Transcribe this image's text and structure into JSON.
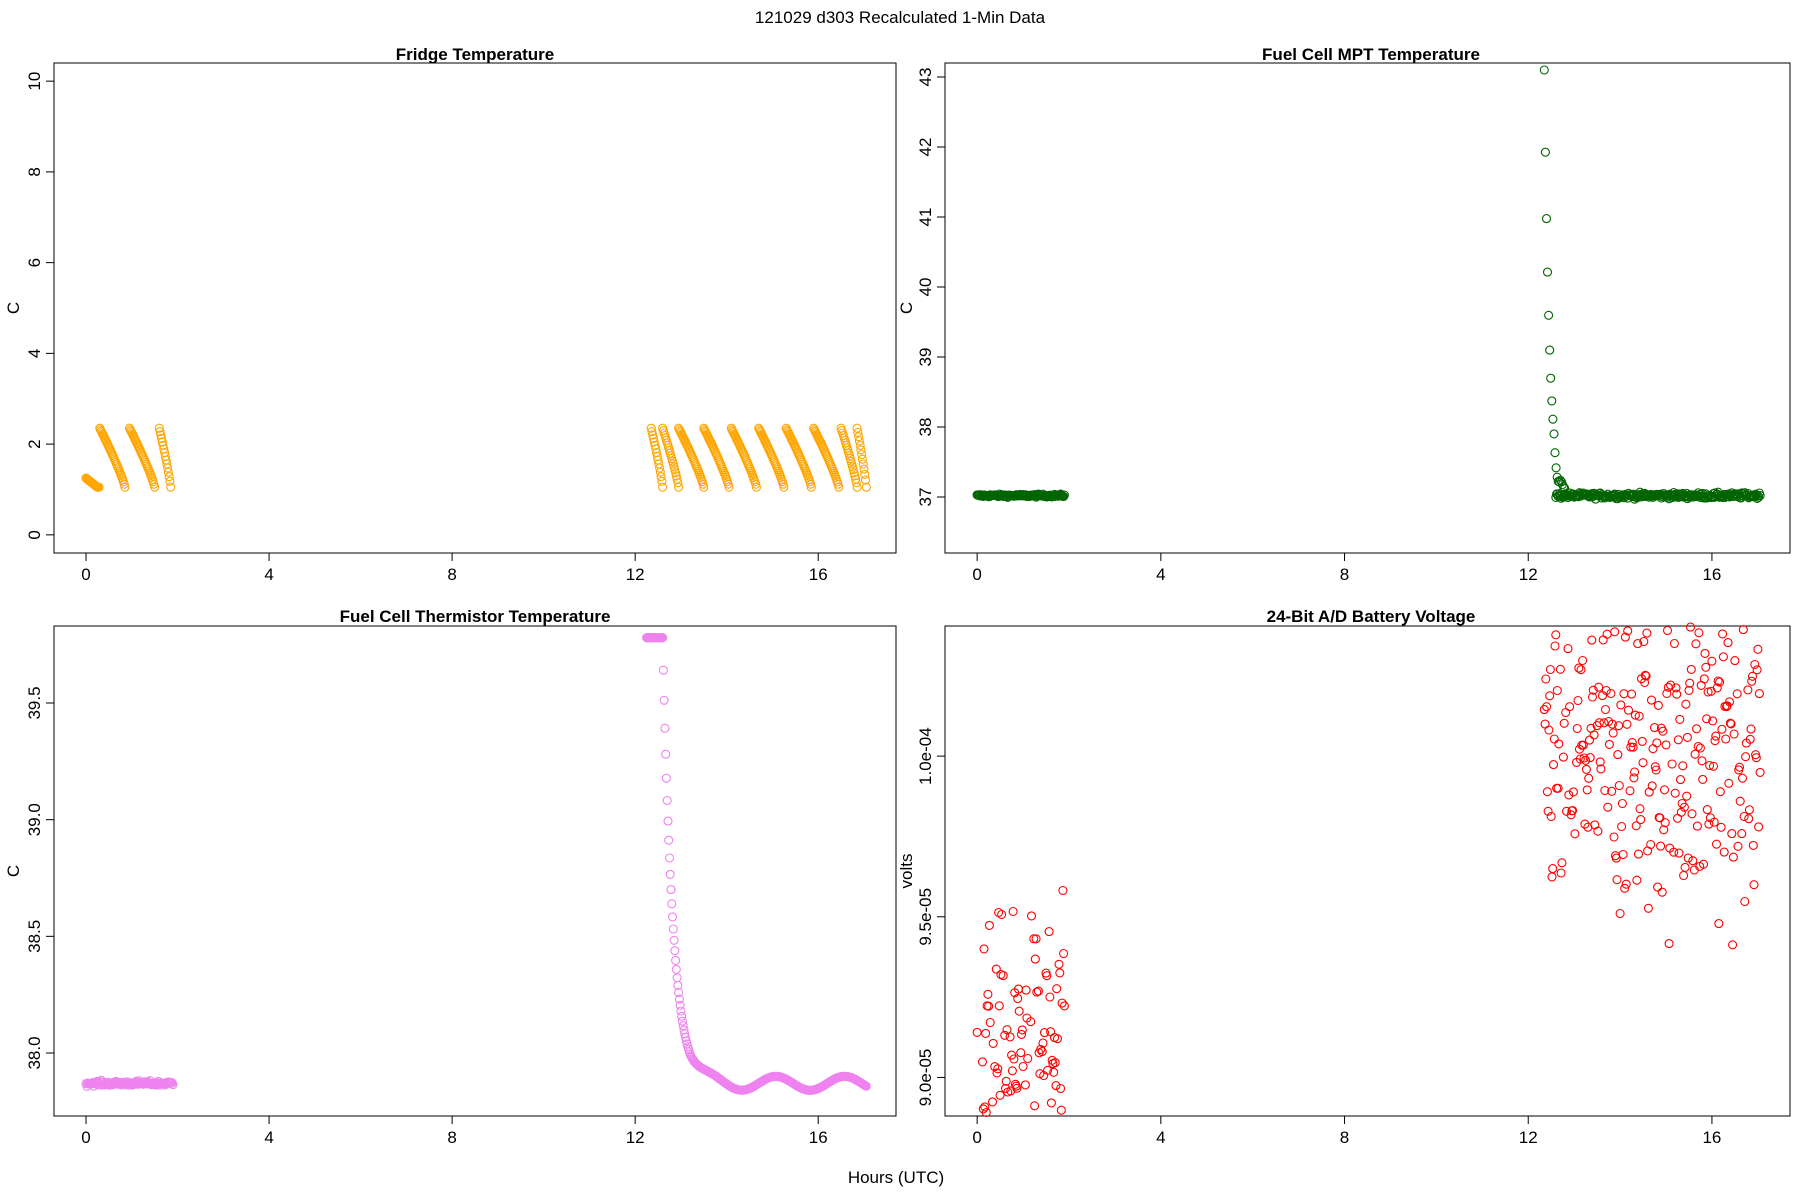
{
  "figure": {
    "suptitle": "121029   d303   Recalculated 1-Min Data",
    "xlabel": "Hours (UTC)"
  },
  "chart_data": [
    {
      "id": "fridge",
      "type": "scatter",
      "title": "Fridge Temperature",
      "xlabel": "",
      "ylabel": "C",
      "xlim": [
        -0.7,
        17.7
      ],
      "ylim": [
        -0.4,
        10.4
      ],
      "xticks": [
        0,
        4,
        8,
        12,
        16
      ],
      "yticks": [
        0,
        2,
        4,
        6,
        8,
        10
      ],
      "yticklabels": [
        "0",
        "2",
        "4",
        "6",
        "8",
        "10"
      ],
      "marker": "open-circle",
      "color": "#ffa500",
      "grid": false,
      "segments": [
        {
          "kind": "sawtooth",
          "x_start": 0.0,
          "x_end": 1.85,
          "cycle_starts": [
            0.3,
            0.95,
            1.6
          ],
          "first_start_level": 1.25,
          "peak": 2.35,
          "low": 1.05,
          "cycle_len": 0.55,
          "step_min": 1
        },
        {
          "kind": "sawtooth",
          "x_start": 12.35,
          "x_end": 17.05,
          "cycle_starts": [
            12.35,
            12.6,
            12.95,
            13.5,
            14.1,
            14.7,
            15.3,
            15.9,
            16.5,
            16.85
          ],
          "first_start_level": 2.35,
          "peak": 2.35,
          "low": 1.05,
          "cycle_len": 0.55,
          "step_min": 1
        }
      ]
    },
    {
      "id": "fcmpt",
      "type": "scatter",
      "title": "Fuel Cell MPT Temperature",
      "xlabel": "",
      "ylabel": "C",
      "xlim": [
        -0.7,
        17.7
      ],
      "ylim": [
        36.2,
        43.2
      ],
      "xticks": [
        0,
        4,
        8,
        12,
        16
      ],
      "yticks": [
        37,
        38,
        39,
        40,
        41,
        42,
        43
      ],
      "yticklabels": [
        "37",
        "38",
        "39",
        "40",
        "41",
        "42",
        "43"
      ],
      "marker": "open-circle",
      "color": "#006400",
      "grid": false,
      "segments": [
        {
          "kind": "flat",
          "x_start": 0.0,
          "x_end": 1.9,
          "level": 37.02,
          "noise": 0.01,
          "step_min": 1
        },
        {
          "kind": "decay",
          "x_start": 12.35,
          "x_end": 17.05,
          "peak": 43.1,
          "base": 37.02,
          "decay_hours": 0.25,
          "step_min": 1
        },
        {
          "kind": "flat",
          "x_start": 12.6,
          "x_end": 17.05,
          "level": 37.02,
          "noise": 0.02,
          "step_min": 1
        }
      ]
    },
    {
      "id": "fcthermistor",
      "type": "scatter",
      "title": "Fuel Cell Thermistor Temperature",
      "xlabel": "",
      "ylabel": "C",
      "xlim": [
        -0.7,
        17.7
      ],
      "ylim": [
        37.73,
        39.83
      ],
      "xticks": [
        0,
        4,
        8,
        12,
        16
      ],
      "yticks": [
        38.0,
        38.5,
        39.0,
        39.5
      ],
      "yticklabels": [
        "38.0",
        "38.5",
        "39.0",
        "39.5"
      ],
      "marker": "open-circle",
      "color": "#ee82ee",
      "grid": false,
      "segments": [
        {
          "kind": "flat",
          "x_start": 0.0,
          "x_end": 1.9,
          "level": 37.87,
          "noise": 0.005,
          "step_min": 1
        },
        {
          "kind": "drop",
          "x_start": 12.25,
          "x_end": 17.05,
          "plateau": 39.78,
          "plateau_end": 12.6,
          "base": 37.87,
          "decay_hours": 0.22,
          "wave_amp": 0.03,
          "wave_period": 1.5,
          "step_min": 1
        }
      ]
    },
    {
      "id": "battery",
      "type": "scatter",
      "title": "24-Bit A/D Battery Voltage",
      "xlabel": "",
      "ylabel": "volts",
      "xlim": [
        -0.7,
        17.7
      ],
      "ylim": [
        8.88e-05,
        0.00010405
      ],
      "xticks": [
        0,
        4,
        8,
        12,
        16
      ],
      "yticks": [
        9e-05,
        9.5e-05,
        0.0001
      ],
      "yticklabels": [
        "9.0e-05",
        "9.5e-05",
        "1.0e-04"
      ],
      "marker": "open-circle",
      "color": "#ff0000",
      "grid": false,
      "segments": [
        {
          "kind": "noise",
          "x_start": 0.0,
          "x_end": 1.9,
          "mean": 9.04e-05,
          "spread": 2.2e-06,
          "step_min": 1
        },
        {
          "kind": "noise",
          "x_start": 12.35,
          "x_end": 17.05,
          "mean": 0.0001002,
          "spread": 2.6e-06,
          "step_min": 1
        }
      ]
    }
  ]
}
